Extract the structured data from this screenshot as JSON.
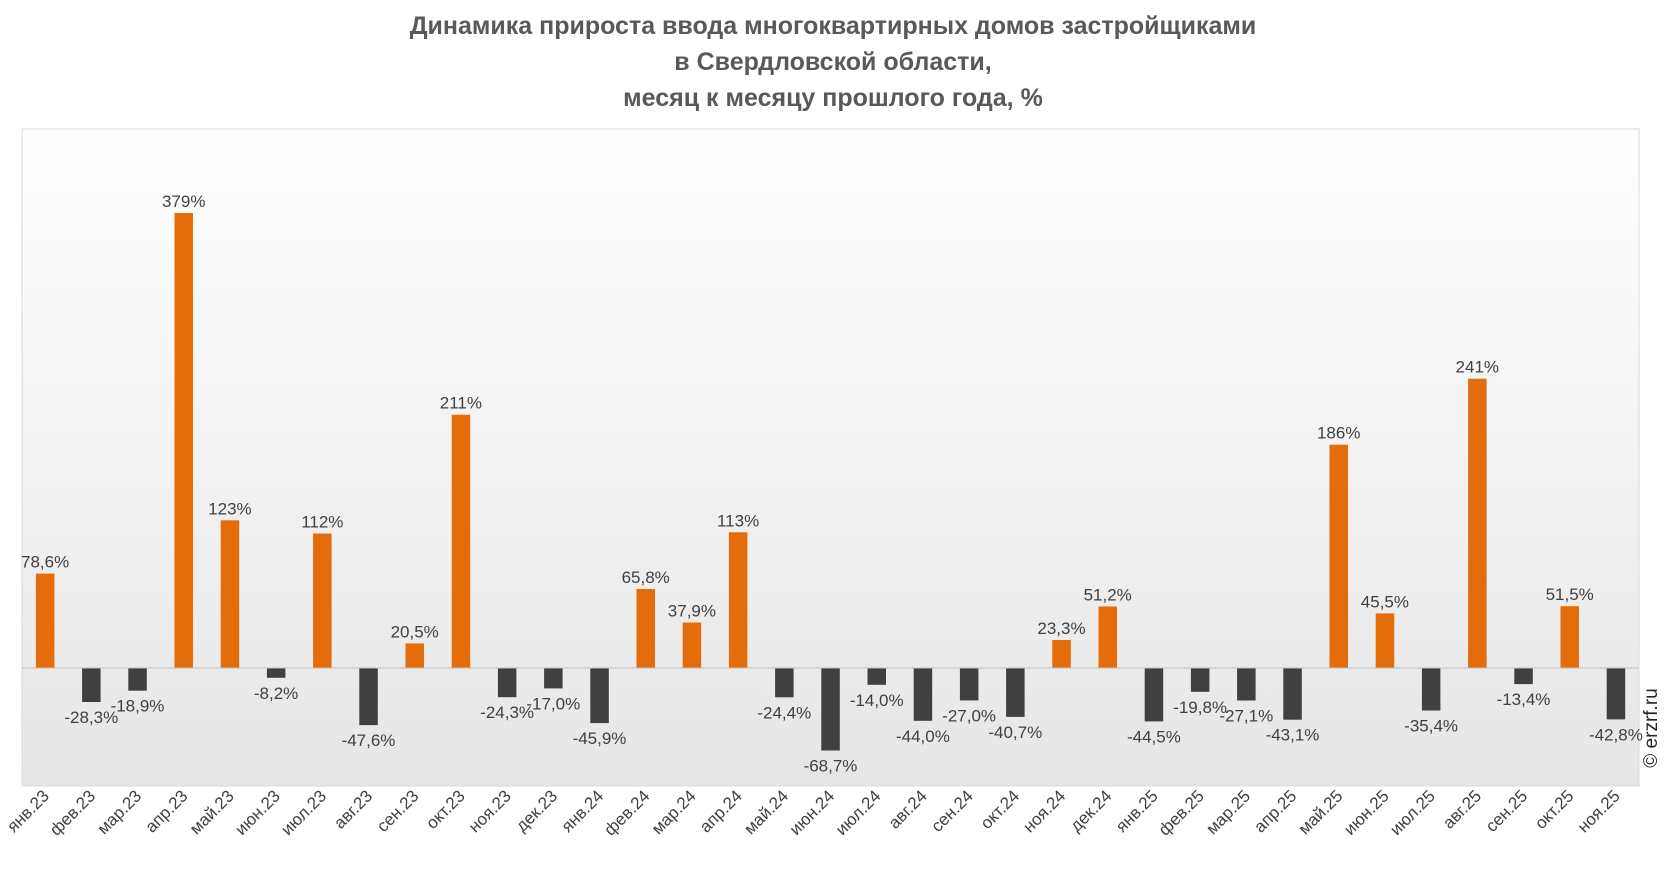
{
  "chart_data": {
    "type": "bar",
    "title_lines": [
      "Динамика прироста ввода многоквартирных домов застройщиками",
      "в Свердловской области,",
      "месяц к месяцу прошлого года, %"
    ],
    "categories": [
      "янв.23",
      "фев.23",
      "мар.23",
      "апр.23",
      "май.23",
      "июн.23",
      "июл.23",
      "авг.23",
      "сен.23",
      "окт.23",
      "ноя.23",
      "дек.23",
      "янв.24",
      "фев.24",
      "мар.24",
      "апр.24",
      "май.24",
      "июн.24",
      "июл.24",
      "авг.24",
      "сен.24",
      "окт.24",
      "ноя.24",
      "дек.24",
      "янв.25",
      "фев.25",
      "мар.25",
      "апр.25",
      "май.25",
      "июн.25",
      "июл.25",
      "авг.25",
      "сен.25",
      "окт.25",
      "ноя.25"
    ],
    "values": [
      78.6,
      -28.3,
      -18.9,
      379,
      123,
      -8.2,
      112,
      -47.6,
      20.5,
      211,
      -24.3,
      -17.0,
      -45.9,
      65.8,
      37.9,
      113,
      -24.4,
      -68.7,
      -14.0,
      -44.0,
      -27.0,
      -40.7,
      23.3,
      51.2,
      -44.5,
      -19.8,
      -27.1,
      -43.1,
      186,
      45.5,
      -35.4,
      241,
      -13.4,
      51.5,
      -42.8
    ],
    "data_labels": [
      "78,6%",
      "-28,3%",
      "-18,9%",
      "379%",
      "123%",
      "-8,2%",
      "112%",
      "-47,6%",
      "20,5%",
      "211%",
      "-24,3%",
      "-17,0%",
      "-45,9%",
      "65,8%",
      "37,9%",
      "113%",
      "-24,4%",
      "-68,7%",
      "-14,0%",
      "-44,0%",
      "-27,0%",
      "-40,7%",
      "23,3%",
      "51,2%",
      "-44,5%",
      "-19,8%",
      "-27,1%",
      "-43,1%",
      "186%",
      "45,5%",
      "-35,4%",
      "241%",
      "-13,4%",
      "51,5%",
      "-42,8%"
    ],
    "colors": {
      "positive": "#E46C0A",
      "negative": "#404040"
    },
    "ylim": [
      -100,
      450
    ],
    "grid": false,
    "legend": "none"
  },
  "copyright": "© erzrf.ru"
}
